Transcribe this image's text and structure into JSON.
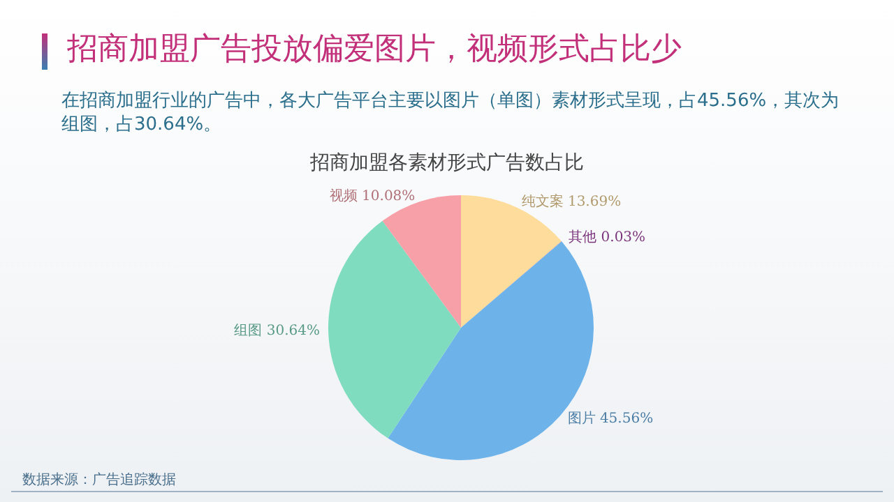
{
  "chart_data": {
    "type": "pie",
    "title": "招商加盟广告投放偏爱图片，视频形式占比少",
    "subtitle": "在招商加盟行业的广告中，各大广告平台主要以图片（单图）素材形式呈现，占45.56%，其次为组图，占30.64%。",
    "annotations": [
      "招商加盟各素材形式广告数占比",
      "数据来源：广告追踪数据"
    ],
    "categories": [
      "纯文案",
      "其他",
      "图片",
      "组图",
      "视频"
    ],
    "values": [
      13.69,
      0.03,
      45.56,
      30.64,
      10.08
    ],
    "colors": [
      "#fddc9c",
      "#b04ab0",
      "#6db3ea",
      "#7fdcbf",
      "#f8a0a8"
    ],
    "value_labels": [
      "13.69%",
      "0.03%",
      "45.56%",
      "30.64%",
      "10.08%"
    ],
    "legend": false
  }
}
